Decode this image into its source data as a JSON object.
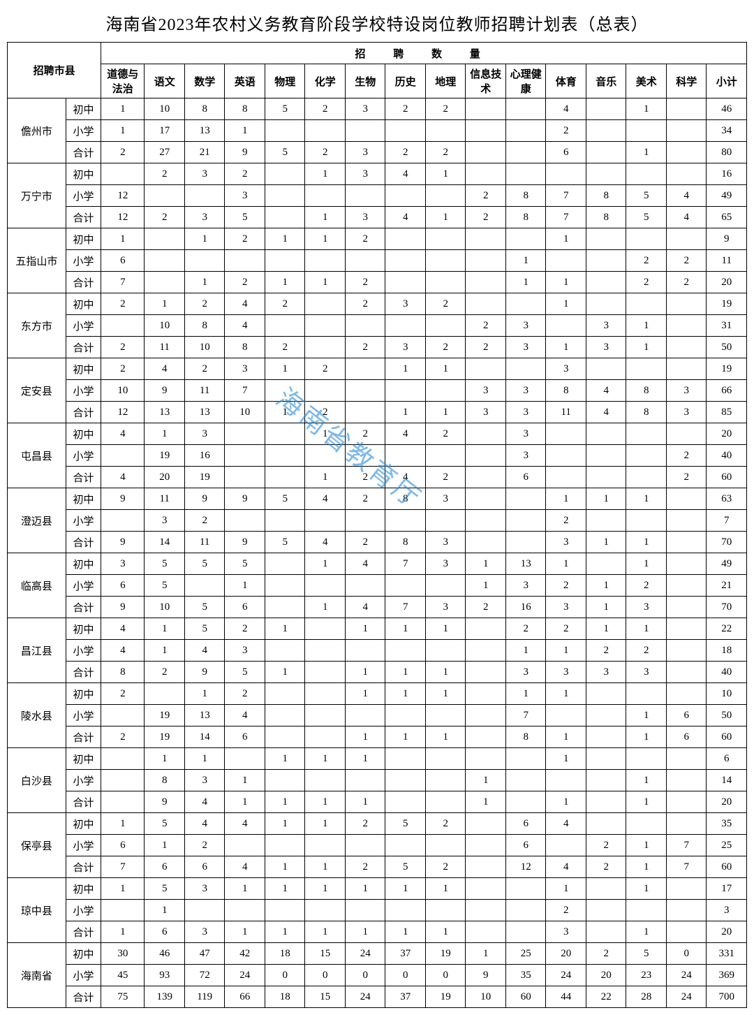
{
  "title": "海南省2023年农村义务教育阶段学校特设岗位教师招聘计划表（总表）",
  "watermark": "海南省教育厅",
  "header": {
    "city": "招聘市县",
    "qty": "招 聘 数 量",
    "subjects": [
      "道德与法治",
      "语文",
      "数学",
      "英语",
      "物理",
      "化学",
      "生物",
      "历史",
      "地理",
      "信息技术",
      "心理健康",
      "体育",
      "音乐",
      "美术",
      "科学",
      "小计"
    ]
  },
  "levels": [
    "初中",
    "小学",
    "合计"
  ],
  "cities": [
    {
      "name": "儋州市",
      "rows": [
        [
          "1",
          "10",
          "8",
          "8",
          "5",
          "2",
          "3",
          "2",
          "2",
          "",
          "",
          "4",
          "",
          "1",
          "",
          "46"
        ],
        [
          "1",
          "17",
          "13",
          "1",
          "",
          "",
          "",
          "",
          "",
          "",
          "",
          "2",
          "",
          "",
          "",
          "34"
        ],
        [
          "2",
          "27",
          "21",
          "9",
          "5",
          "2",
          "3",
          "2",
          "2",
          "",
          "",
          "6",
          "",
          "1",
          "",
          "80"
        ]
      ]
    },
    {
      "name": "万宁市",
      "rows": [
        [
          "",
          "2",
          "3",
          "2",
          "",
          "1",
          "3",
          "4",
          "1",
          "",
          "",
          "",
          "",
          "",
          "",
          "16"
        ],
        [
          "12",
          "",
          "",
          "3",
          "",
          "",
          "",
          "",
          "",
          "2",
          "8",
          "7",
          "8",
          "5",
          "4",
          "49"
        ],
        [
          "12",
          "2",
          "3",
          "5",
          "",
          "1",
          "3",
          "4",
          "1",
          "2",
          "8",
          "7",
          "8",
          "5",
          "4",
          "65"
        ]
      ]
    },
    {
      "name": "五指山市",
      "rows": [
        [
          "1",
          "",
          "1",
          "2",
          "1",
          "1",
          "2",
          "",
          "",
          "",
          "",
          "1",
          "",
          "",
          "",
          "9"
        ],
        [
          "6",
          "",
          "",
          "",
          "",
          "",
          "",
          "",
          "",
          "",
          "1",
          "",
          "",
          "2",
          "2",
          "11"
        ],
        [
          "7",
          "",
          "1",
          "2",
          "1",
          "1",
          "2",
          "",
          "",
          "",
          "1",
          "1",
          "",
          "2",
          "2",
          "20"
        ]
      ]
    },
    {
      "name": "东方市",
      "rows": [
        [
          "2",
          "1",
          "2",
          "4",
          "2",
          "",
          "2",
          "3",
          "2",
          "",
          "",
          "1",
          "",
          "",
          "",
          "19"
        ],
        [
          "",
          "10",
          "8",
          "4",
          "",
          "",
          "",
          "",
          "",
          "2",
          "3",
          "",
          "3",
          "1",
          "",
          "31"
        ],
        [
          "2",
          "11",
          "10",
          "8",
          "2",
          "",
          "2",
          "3",
          "2",
          "2",
          "3",
          "1",
          "3",
          "1",
          "",
          "50"
        ]
      ]
    },
    {
      "name": "定安县",
      "rows": [
        [
          "2",
          "4",
          "2",
          "3",
          "1",
          "2",
          "",
          "1",
          "1",
          "",
          "",
          "3",
          "",
          "",
          "",
          "19"
        ],
        [
          "10",
          "9",
          "11",
          "7",
          "",
          "",
          "",
          "",
          "",
          "3",
          "3",
          "8",
          "4",
          "8",
          "3",
          "66"
        ],
        [
          "12",
          "13",
          "13",
          "10",
          "1",
          "2",
          "",
          "1",
          "1",
          "3",
          "3",
          "11",
          "4",
          "8",
          "3",
          "85"
        ]
      ]
    },
    {
      "name": "屯昌县",
      "rows": [
        [
          "4",
          "1",
          "3",
          "",
          "",
          "1",
          "2",
          "4",
          "2",
          "",
          "3",
          "",
          "",
          "",
          "",
          "20"
        ],
        [
          "",
          "19",
          "16",
          "",
          "",
          "",
          "",
          "",
          "",
          "",
          "3",
          "",
          "",
          "",
          "2",
          "40"
        ],
        [
          "4",
          "20",
          "19",
          "",
          "",
          "1",
          "2",
          "4",
          "2",
          "",
          "6",
          "",
          "",
          "",
          "2",
          "60"
        ]
      ]
    },
    {
      "name": "澄迈县",
      "rows": [
        [
          "9",
          "11",
          "9",
          "9",
          "5",
          "4",
          "2",
          "8",
          "3",
          "",
          "",
          "1",
          "1",
          "1",
          "",
          "63"
        ],
        [
          "",
          "3",
          "2",
          "",
          "",
          "",
          "",
          "",
          "",
          "",
          "",
          "2",
          "",
          "",
          "",
          "7"
        ],
        [
          "9",
          "14",
          "11",
          "9",
          "5",
          "4",
          "2",
          "8",
          "3",
          "",
          "",
          "3",
          "1",
          "1",
          "",
          "70"
        ]
      ]
    },
    {
      "name": "临高县",
      "rows": [
        [
          "3",
          "5",
          "5",
          "5",
          "",
          "1",
          "4",
          "7",
          "3",
          "1",
          "13",
          "1",
          "",
          "1",
          "",
          "49"
        ],
        [
          "6",
          "5",
          "",
          "1",
          "",
          "",
          "",
          "",
          "",
          "1",
          "3",
          "2",
          "1",
          "2",
          "",
          "21"
        ],
        [
          "9",
          "10",
          "5",
          "6",
          "",
          "1",
          "4",
          "7",
          "3",
          "2",
          "16",
          "3",
          "1",
          "3",
          "",
          "70"
        ]
      ]
    },
    {
      "name": "昌江县",
      "rows": [
        [
          "4",
          "1",
          "5",
          "2",
          "1",
          "",
          "1",
          "1",
          "1",
          "",
          "2",
          "2",
          "1",
          "1",
          "",
          "22"
        ],
        [
          "4",
          "1",
          "4",
          "3",
          "",
          "",
          "",
          "",
          "",
          "",
          "1",
          "1",
          "2",
          "2",
          "",
          "18"
        ],
        [
          "8",
          "2",
          "9",
          "5",
          "1",
          "",
          "1",
          "1",
          "1",
          "",
          "3",
          "3",
          "3",
          "3",
          "",
          "40"
        ]
      ]
    },
    {
      "name": "陵水县",
      "rows": [
        [
          "2",
          "",
          "1",
          "2",
          "",
          "",
          "1",
          "1",
          "1",
          "",
          "1",
          "1",
          "",
          "",
          "",
          "10"
        ],
        [
          "",
          "19",
          "13",
          "4",
          "",
          "",
          "",
          "",
          "",
          "",
          "7",
          "",
          "",
          "1",
          "6",
          "50"
        ],
        [
          "2",
          "19",
          "14",
          "6",
          "",
          "",
          "1",
          "1",
          "1",
          "",
          "8",
          "1",
          "",
          "1",
          "6",
          "60"
        ]
      ]
    },
    {
      "name": "白沙县",
      "rows": [
        [
          "",
          "1",
          "1",
          "",
          "1",
          "1",
          "1",
          "",
          "",
          "",
          "",
          "1",
          "",
          "",
          "",
          "6"
        ],
        [
          "",
          "8",
          "3",
          "1",
          "",
          "",
          "",
          "",
          "",
          "1",
          "",
          "",
          "",
          "1",
          "",
          "14"
        ],
        [
          "",
          "9",
          "4",
          "1",
          "1",
          "1",
          "1",
          "",
          "",
          "1",
          "",
          "1",
          "",
          "1",
          "",
          "20"
        ]
      ]
    },
    {
      "name": "保亭县",
      "rows": [
        [
          "1",
          "5",
          "4",
          "4",
          "1",
          "1",
          "2",
          "5",
          "2",
          "",
          "6",
          "4",
          "",
          "",
          "",
          "35"
        ],
        [
          "6",
          "1",
          "2",
          "",
          "",
          "",
          "",
          "",
          "",
          "",
          "6",
          "",
          "2",
          "1",
          "7",
          "25"
        ],
        [
          "7",
          "6",
          "6",
          "4",
          "1",
          "1",
          "2",
          "5",
          "2",
          "",
          "12",
          "4",
          "2",
          "1",
          "7",
          "60"
        ]
      ]
    },
    {
      "name": "琼中县",
      "rows": [
        [
          "1",
          "5",
          "3",
          "1",
          "1",
          "1",
          "1",
          "1",
          "1",
          "",
          "",
          "1",
          "",
          "1",
          "",
          "17"
        ],
        [
          "",
          "1",
          "",
          "",
          "",
          "",
          "",
          "",
          "",
          "",
          "",
          "2",
          "",
          "",
          "",
          "3"
        ],
        [
          "1",
          "6",
          "3",
          "1",
          "1",
          "1",
          "1",
          "1",
          "1",
          "",
          "",
          "3",
          "",
          "1",
          "",
          "20"
        ]
      ]
    },
    {
      "name": "海南省",
      "rows": [
        [
          "30",
          "46",
          "47",
          "42",
          "18",
          "15",
          "24",
          "37",
          "19",
          "1",
          "25",
          "20",
          "2",
          "5",
          "0",
          "331"
        ],
        [
          "45",
          "93",
          "72",
          "24",
          "0",
          "0",
          "0",
          "0",
          "0",
          "9",
          "35",
          "24",
          "20",
          "23",
          "24",
          "369"
        ],
        [
          "75",
          "139",
          "119",
          "66",
          "18",
          "15",
          "24",
          "37",
          "19",
          "10",
          "60",
          "44",
          "22",
          "28",
          "24",
          "700"
        ]
      ]
    }
  ]
}
